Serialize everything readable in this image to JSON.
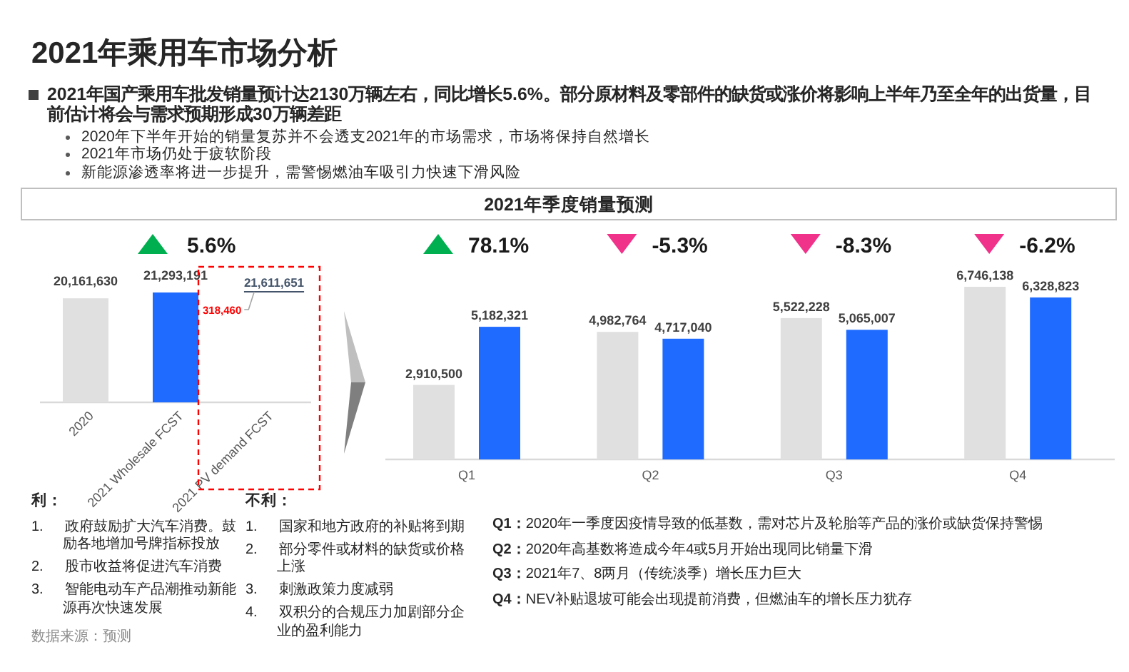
{
  "chart_data": [
    {
      "type": "other",
      "title": "2021年乘用车市场分析",
      "annotations": [
        "2021年国产乘用车批发销量预计达2130万辆左右，同比增长5.6%。部分原材料及零部件的缺货或涨价将影响上半年乃至全年的出货量，目前估计将会与需求预期形成30万辆差距",
        "2020年下半年开始的销量复苏并不会透支2021年的市场需求，市场将保持自然增长",
        "2021年市场仍处于疲软阶段",
        "新能源渗透率将进一步提升，需警惕燃油车吸引力快速下滑风险"
      ]
    },
    {
      "type": "bar",
      "categories": [
        "2020",
        "2021 Wholesale FCST",
        "2021 PV demand FCST"
      ],
      "values": [
        20161630,
        21293191,
        null
      ],
      "value_labels": [
        "20,161,630",
        "21,293,191",
        null
      ],
      "colors": [
        "#e0e0e0",
        "#1f6bff",
        null
      ],
      "annotations": [
        "5.6%",
        "21,611,651",
        "318,460",
        "数据来源：预测"
      ]
    },
    {
      "type": "bar",
      "title": "2021年季度销量预测",
      "categories": [
        "Q1",
        "Q2",
        "Q3",
        "Q4"
      ],
      "series": [
        {
          "color": "#e0e0e0",
          "values": [
            2910500,
            4982764,
            5522228,
            6746138
          ],
          "value_labels": [
            "2,910,500",
            "4,982,764",
            "5,522,228",
            "6,746,138"
          ]
        },
        {
          "color": "#1f6bff",
          "values": [
            5182321,
            4717040,
            5065007,
            6328823
          ],
          "value_labels": [
            "5,182,321",
            "4,717,040",
            "5,065,007",
            "6,328,823"
          ]
        }
      ],
      "annotations": [
        "78.1%",
        "-5.3%",
        "-8.3%",
        "-6.2%",
        "Q1：2020年一季度因疫情导致的低基数，需对芯片及轮胎等产品的涨价或缺货保持警惕",
        "Q2：2020年高基数将造成今年4或5月开始出现同比销量下滑",
        "Q3：2021年7、8两月（传统淡季）增长压力巨大",
        "Q4：NEV补贴退坡可能会出现提前消费，但燃油车的增长压力犹存"
      ]
    },
    {
      "type": "other",
      "title": "利：",
      "annotations": [
        "1. 政府鼓励扩大汽车消费。鼓励各地增加号牌指标投放",
        "2. 股市收益将促进汽车消费",
        "3. 智能电动车产品潮推动新能源再次快速发展"
      ]
    },
    {
      "type": "other",
      "title": "不利：",
      "annotations": [
        "1. 国家和地方政府的补贴将到期",
        "2. 部分零件或材料的缺货或价格上涨",
        "3. 刺激政策力度减弱",
        "4. 双积分的合规压力加剧部分企业的盈利能力"
      ]
    }
  ]
}
